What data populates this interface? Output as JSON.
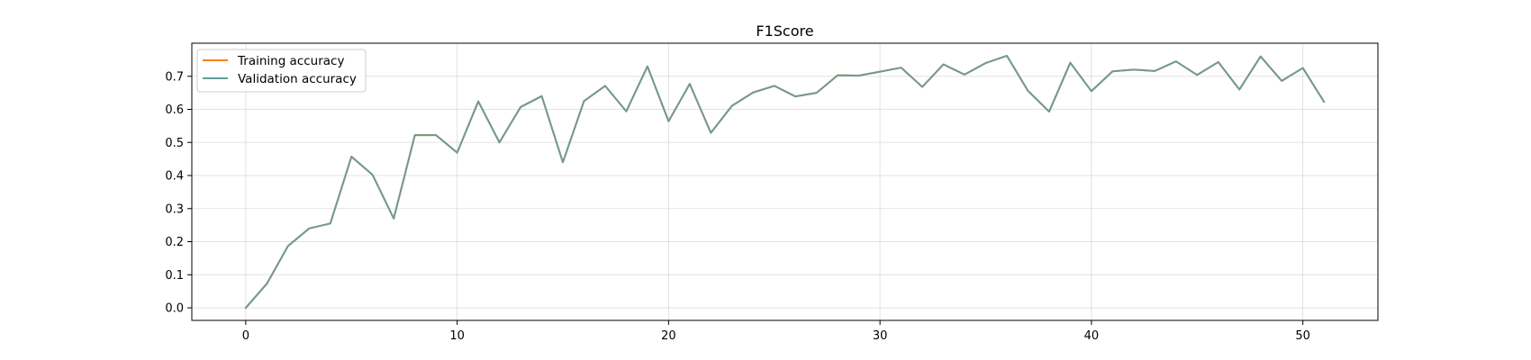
{
  "chart_data": {
    "type": "line",
    "title": "F1Score",
    "xlabel": "",
    "ylabel": "",
    "xlim": [
      -2.55,
      53.55
    ],
    "ylim": [
      -0.038,
      0.8
    ],
    "xticks": [
      0,
      10,
      20,
      30,
      40,
      50
    ],
    "yticks": [
      0.0,
      0.1,
      0.2,
      0.3,
      0.4,
      0.5,
      0.6,
      0.7
    ],
    "grid": true,
    "legend_position": "upper-left",
    "series": [
      {
        "name": "Training accuracy",
        "color": "#ff7f0e",
        "x": [
          0,
          1,
          2,
          3,
          4,
          5,
          6,
          7,
          8,
          9,
          10,
          11,
          12,
          13,
          14,
          15,
          16,
          17,
          18,
          19,
          20,
          21,
          22,
          23,
          24,
          25,
          26,
          27,
          28,
          29,
          30,
          31,
          32,
          33,
          34,
          35,
          36,
          37,
          38,
          39,
          40,
          41,
          42,
          43,
          44,
          45,
          46,
          47,
          48,
          49,
          50,
          51
        ],
        "values": [
          0.0,
          0.073,
          0.187,
          0.24,
          0.255,
          0.457,
          0.402,
          0.27,
          0.522,
          0.522,
          0.469,
          0.624,
          0.5,
          0.607,
          0.64,
          0.44,
          0.625,
          0.671,
          0.594,
          0.73,
          0.564,
          0.677,
          0.529,
          0.611,
          0.651,
          0.671,
          0.639,
          0.65,
          0.703,
          0.702,
          0.714,
          0.726,
          0.668,
          0.736,
          0.705,
          0.74,
          0.762,
          0.656,
          0.593,
          0.741,
          0.655,
          0.715,
          0.72,
          0.716,
          0.745,
          0.704,
          0.743,
          0.66,
          0.76,
          0.686,
          0.725,
          0.623
        ]
      },
      {
        "name": "Validation accuracy",
        "color": "#5f9ea0",
        "x": [
          0,
          1,
          2,
          3,
          4,
          5,
          6,
          7,
          8,
          9,
          10,
          11,
          12,
          13,
          14,
          15,
          16,
          17,
          18,
          19,
          20,
          21,
          22,
          23,
          24,
          25,
          26,
          27,
          28,
          29,
          30,
          31,
          32,
          33,
          34,
          35,
          36,
          37,
          38,
          39,
          40,
          41,
          42,
          43,
          44,
          45,
          46,
          47,
          48,
          49,
          50,
          51
        ],
        "values": [
          0.0,
          0.073,
          0.187,
          0.24,
          0.255,
          0.457,
          0.402,
          0.27,
          0.522,
          0.522,
          0.469,
          0.624,
          0.5,
          0.607,
          0.64,
          0.44,
          0.625,
          0.671,
          0.594,
          0.73,
          0.564,
          0.677,
          0.529,
          0.611,
          0.651,
          0.671,
          0.639,
          0.65,
          0.703,
          0.702,
          0.714,
          0.726,
          0.668,
          0.736,
          0.705,
          0.74,
          0.762,
          0.656,
          0.593,
          0.741,
          0.655,
          0.715,
          0.72,
          0.716,
          0.745,
          0.704,
          0.743,
          0.66,
          0.76,
          0.686,
          0.725,
          0.623
        ]
      }
    ]
  }
}
